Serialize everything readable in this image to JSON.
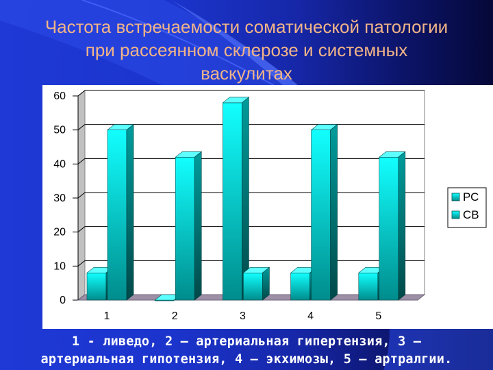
{
  "slide": {
    "title_lines": [
      "Частота встречаемости соматической патологии",
      "при рассеянном склерозе и системных",
      "васкулитах"
    ],
    "caption_lines": [
      "1 - ливедо, 2 – артериальная гипертензия, 3 –",
      "артериальная гипотензия, 4 – экхимозы, 5 – артралгии."
    ],
    "colors": {
      "background": "#1f39d6",
      "title": "#f1b488",
      "bar_front": "#00e5e5",
      "bar_side": "#007a7a",
      "floor": "#9c8fa6"
    }
  },
  "chart_data": {
    "type": "bar",
    "style": "3d-clustered-column",
    "categories": [
      "1",
      "2",
      "3",
      "4",
      "5"
    ],
    "series": [
      {
        "name": "РС",
        "values": [
          8,
          0,
          58,
          8,
          8
        ]
      },
      {
        "name": "СВ",
        "values": [
          50,
          42,
          8,
          50,
          42
        ]
      }
    ],
    "ylim": [
      0,
      60
    ],
    "yticks": [
      "0",
      "10",
      "20",
      "30",
      "40",
      "50",
      "60"
    ],
    "grid": true,
    "legend_position": "right"
  }
}
